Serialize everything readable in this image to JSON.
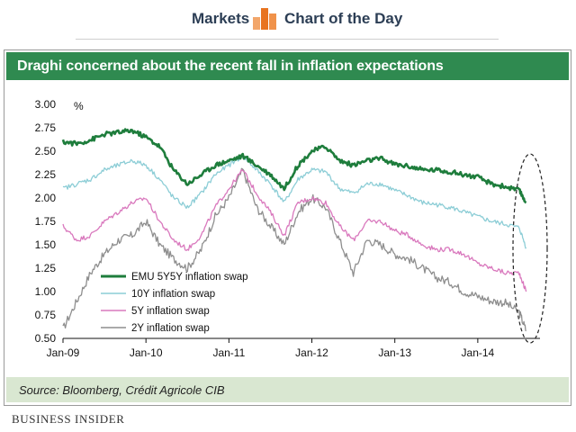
{
  "header": {
    "left_label": "Markets",
    "right_label": "Chart of the Day",
    "logo_icon": "bar-chart-icon"
  },
  "title": "Draghi concerned about the recent fall in inflation expectations",
  "source": "Source: Bloomberg, Crédit Agricole CIB",
  "brand": "BUSINESS INSIDER",
  "chart_data": {
    "type": "line",
    "ylabel": "%",
    "ylim": [
      0.5,
      3.0
    ],
    "yticks": [
      0.5,
      0.75,
      1.0,
      1.25,
      1.5,
      1.75,
      2.0,
      2.25,
      2.5,
      2.75,
      3.0
    ],
    "ytick_labels": [
      "0.50",
      "0.75",
      "1.00",
      "1.25",
      "1.50",
      "1.75",
      "2.00",
      "2.25",
      "2.50",
      "2.75",
      "3.00"
    ],
    "xlim": [
      "2009-01",
      "2014-10"
    ],
    "xticks": [
      "Jan-09",
      "Jan-10",
      "Jan-11",
      "Jan-12",
      "Jan-13",
      "Jan-14"
    ],
    "grid": false,
    "legend_position": "bottom-left",
    "annotation": "dashed ellipse highlighting the recent fall (mid-2014)",
    "x": [
      "2009-01",
      "2009-03",
      "2009-05",
      "2009-07",
      "2009-09",
      "2009-11",
      "2010-01",
      "2010-03",
      "2010-05",
      "2010-07",
      "2010-09",
      "2010-11",
      "2011-01",
      "2011-03",
      "2011-05",
      "2011-07",
      "2011-09",
      "2011-11",
      "2012-01",
      "2012-03",
      "2012-05",
      "2012-07",
      "2012-09",
      "2012-11",
      "2013-01",
      "2013-03",
      "2013-05",
      "2013-07",
      "2013-09",
      "2013-11",
      "2014-01",
      "2014-03",
      "2014-05",
      "2014-07",
      "2014-08"
    ],
    "series": [
      {
        "name": "EMU 5Y5Y inflation swap",
        "color": "#1e7d3c",
        "values": [
          2.6,
          2.58,
          2.62,
          2.68,
          2.7,
          2.72,
          2.65,
          2.55,
          2.3,
          2.15,
          2.25,
          2.35,
          2.4,
          2.45,
          2.35,
          2.25,
          2.1,
          2.35,
          2.5,
          2.55,
          2.4,
          2.35,
          2.4,
          2.42,
          2.36,
          2.34,
          2.3,
          2.3,
          2.28,
          2.25,
          2.22,
          2.15,
          2.12,
          2.08,
          1.95
        ]
      },
      {
        "name": "10Y inflation swap",
        "color": "#8ccdd6",
        "values": [
          2.1,
          2.15,
          2.2,
          2.3,
          2.35,
          2.4,
          2.35,
          2.2,
          2.0,
          1.9,
          2.05,
          2.25,
          2.35,
          2.45,
          2.3,
          2.15,
          1.95,
          2.2,
          2.3,
          2.28,
          2.1,
          2.05,
          2.15,
          2.15,
          2.08,
          2.02,
          1.95,
          1.93,
          1.9,
          1.85,
          1.8,
          1.75,
          1.72,
          1.68,
          1.47
        ]
      },
      {
        "name": "5Y inflation swap",
        "color": "#d978bd",
        "values": [
          1.7,
          1.55,
          1.6,
          1.75,
          1.85,
          1.95,
          2.0,
          1.75,
          1.55,
          1.45,
          1.6,
          1.9,
          2.1,
          2.3,
          2.05,
          1.85,
          1.6,
          1.95,
          2.0,
          1.95,
          1.7,
          1.55,
          1.75,
          1.75,
          1.65,
          1.6,
          1.5,
          1.45,
          1.45,
          1.4,
          1.3,
          1.25,
          1.2,
          1.2,
          1.0
        ]
      },
      {
        "name": "2Y inflation swap",
        "color": "#8e8e8e",
        "values": [
          0.6,
          0.9,
          1.2,
          1.4,
          1.55,
          1.6,
          1.75,
          1.5,
          1.35,
          1.25,
          1.45,
          1.8,
          2.0,
          2.3,
          1.9,
          1.7,
          1.5,
          1.85,
          2.0,
          1.9,
          1.55,
          1.2,
          1.55,
          1.5,
          1.4,
          1.35,
          1.25,
          1.15,
          1.1,
          1.0,
          0.95,
          0.9,
          0.88,
          0.78,
          0.58
        ]
      }
    ]
  }
}
